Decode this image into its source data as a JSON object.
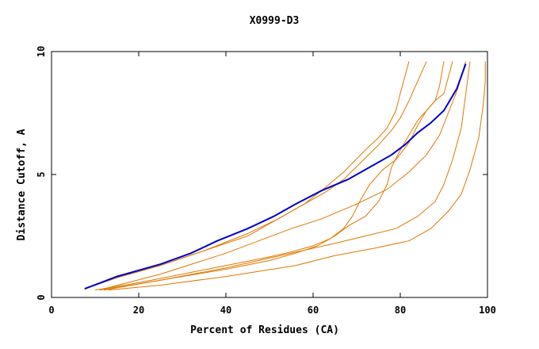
{
  "chart_data": {
    "type": "line",
    "title": "X0999-D3",
    "xlabel": "Percent of Residues (CA)",
    "ylabel": "Distance Cutoff, A",
    "xlim": [
      0,
      100
    ],
    "ylim": [
      0,
      10
    ],
    "x_ticks": [
      0,
      20,
      40,
      60,
      80,
      100
    ],
    "y_ticks": [
      0,
      5,
      10
    ],
    "grid": false,
    "highlight_color": "#0000cc",
    "series_color": "#e07800",
    "highlight": {
      "x": [
        7.6,
        15,
        25,
        32,
        38,
        45,
        51,
        56,
        62,
        68,
        73,
        78,
        81,
        84,
        87,
        90,
        93,
        95
      ],
      "y": [
        0.35,
        0.85,
        1.35,
        1.8,
        2.3,
        2.8,
        3.3,
        3.8,
        4.35,
        4.8,
        5.3,
        5.8,
        6.2,
        6.7,
        7.1,
        7.6,
        8.5,
        9.5
      ]
    },
    "series": [
      {
        "x": [
          7.6,
          15,
          25,
          35,
          45,
          52,
          58,
          63,
          67,
          72,
          75,
          77,
          79,
          80,
          82
        ],
        "y": [
          0.35,
          0.8,
          1.3,
          1.9,
          2.5,
          3.2,
          3.8,
          4.5,
          5.1,
          6.0,
          6.5,
          6.9,
          7.6,
          8.3,
          9.6
        ]
      },
      {
        "x": [
          7.6,
          15,
          25,
          35,
          45,
          52,
          58,
          63,
          67,
          71,
          75,
          78,
          80,
          82,
          84,
          86
        ],
        "y": [
          0.35,
          0.8,
          1.3,
          1.9,
          2.6,
          3.2,
          3.8,
          4.3,
          4.8,
          5.5,
          6.2,
          6.8,
          7.3,
          8.0,
          8.8,
          9.6
        ]
      },
      {
        "x": [
          10,
          20,
          30,
          40,
          50,
          55,
          60,
          64,
          67,
          69,
          71,
          73,
          76,
          79,
          82,
          84,
          86,
          88,
          90,
          92
        ],
        "y": [
          0.3,
          0.6,
          0.95,
          1.3,
          1.65,
          1.85,
          2.1,
          2.4,
          2.8,
          3.3,
          4.0,
          4.6,
          5.2,
          5.6,
          6.3,
          7.0,
          7.6,
          8.0,
          8.3,
          9.6
        ]
      },
      {
        "x": [
          11,
          20,
          30,
          40,
          50,
          56,
          61,
          65,
          68,
          72,
          75,
          77,
          78,
          80,
          82,
          84,
          86,
          88,
          89,
          90
        ],
        "y": [
          0.3,
          0.55,
          0.85,
          1.15,
          1.5,
          1.8,
          2.1,
          2.5,
          2.9,
          3.3,
          3.9,
          4.6,
          5.3,
          6.0,
          6.6,
          7.2,
          7.6,
          8.0,
          8.6,
          9.6
        ]
      },
      {
        "x": [
          12,
          25,
          40,
          55,
          62,
          70,
          77,
          82,
          86,
          89,
          91,
          93,
          95
        ],
        "y": [
          0.35,
          0.95,
          1.8,
          2.8,
          3.2,
          3.8,
          4.4,
          5.1,
          5.8,
          6.6,
          7.5,
          8.4,
          9.6
        ]
      },
      {
        "x": [
          12,
          25,
          40,
          55,
          65,
          72,
          79,
          84,
          88,
          90,
          92,
          94,
          96
        ],
        "y": [
          0.3,
          0.7,
          1.2,
          1.8,
          2.2,
          2.5,
          2.8,
          3.3,
          3.9,
          4.6,
          5.6,
          6.9,
          9.6
        ]
      },
      {
        "x": [
          13,
          25,
          40,
          56,
          65,
          74,
          82,
          87,
          91,
          94,
          96,
          98,
          99,
          99.5,
          99.5
        ],
        "y": [
          0.3,
          0.5,
          0.85,
          1.3,
          1.7,
          2.0,
          2.3,
          2.8,
          3.5,
          4.2,
          5.2,
          6.5,
          7.8,
          8.8,
          9.6
        ]
      }
    ]
  }
}
